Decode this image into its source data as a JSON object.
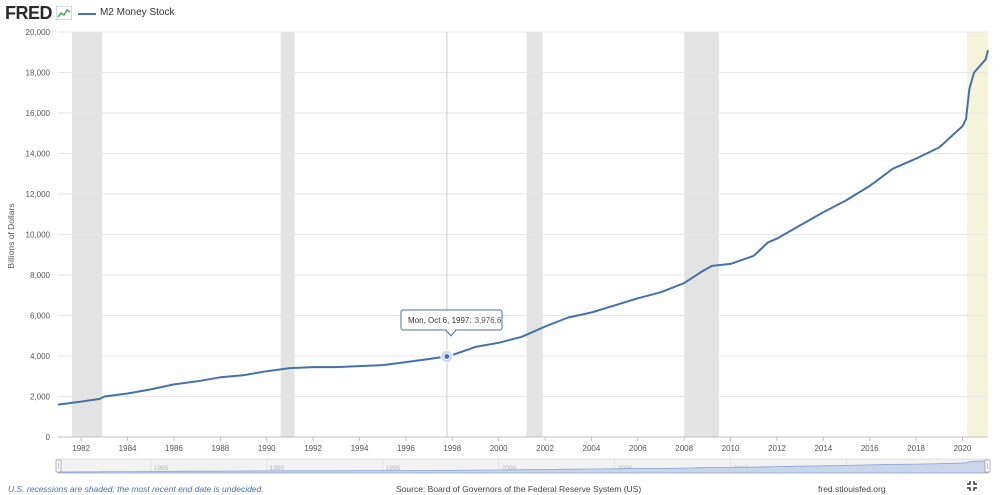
{
  "brand": {
    "logo_text": "FRED",
    "logo_icon": "fred-chart-icon"
  },
  "legend": {
    "label": "M2 Money Stock",
    "color": "#4572a7"
  },
  "colors": {
    "series": "#4572a7",
    "recession": "#e3e3e3",
    "undecided": "#f6f4d8",
    "grid": "#e6e6e6",
    "navigator_fill": "#c9d5ea"
  },
  "tooltip": {
    "date": "Mon, Oct 6, 1997:",
    "value": "3,976.6"
  },
  "footer": {
    "recession_note": "U.S. recessions are shaded; the most recent end date is undecided.",
    "source": "Source: Board of Governors of the Federal Reserve System (US)",
    "site": "fred.stlouisfed.org"
  },
  "navigator": {
    "ticks": [
      "1985",
      "1990",
      "1995",
      "2000",
      "2005",
      "2010",
      "2015",
      "2020"
    ]
  },
  "chart_data": {
    "type": "line",
    "title": "",
    "xlabel": "",
    "ylabel": "Billions of Dollars",
    "xlim": [
      1981.0,
      2021.1
    ],
    "ylim": [
      0,
      20000
    ],
    "x_ticks": [
      "1982",
      "1984",
      "1986",
      "1988",
      "1990",
      "1992",
      "1994",
      "1996",
      "1998",
      "2000",
      "2002",
      "2004",
      "2006",
      "2008",
      "2010",
      "2012",
      "2014",
      "2016",
      "2018",
      "2020"
    ],
    "y_ticks": [
      "0",
      "2,000",
      "4,000",
      "6,000",
      "8,000",
      "10,000",
      "12,000",
      "14,000",
      "16,000",
      "18,000",
      "20,000"
    ],
    "recessions": [
      [
        1981.6,
        1982.9
      ],
      [
        1990.6,
        1991.2
      ],
      [
        2001.2,
        2001.9
      ],
      [
        2008.0,
        2009.5
      ]
    ],
    "undecided_recession": [
      2020.2,
      2021.1
    ],
    "series": [
      {
        "name": "M2 Money Stock",
        "x": [
          1981.0,
          1982.0,
          1982.8,
          1983.0,
          1984.0,
          1985.0,
          1986.0,
          1987.0,
          1988.0,
          1989.0,
          1990.0,
          1991.0,
          1992.0,
          1993.0,
          1994.0,
          1995.0,
          1996.0,
          1997.0,
          1997.77,
          1998.0,
          1999.0,
          2000.0,
          2001.0,
          2002.0,
          2003.0,
          2004.0,
          2005.0,
          2006.0,
          2007.0,
          2008.0,
          2008.8,
          2009.2,
          2010.0,
          2011.0,
          2011.6,
          2012.0,
          2013.0,
          2014.0,
          2015.0,
          2016.0,
          2017.0,
          2018.0,
          2019.0,
          2020.0,
          2020.15,
          2020.3,
          2020.5,
          2021.0,
          2021.1
        ],
        "y": [
          1600,
          1750,
          1880,
          2000,
          2150,
          2350,
          2600,
          2750,
          2950,
          3050,
          3250,
          3400,
          3450,
          3450,
          3500,
          3550,
          3700,
          3850,
          3976.6,
          4050,
          4450,
          4650,
          4950,
          5450,
          5900,
          6150,
          6500,
          6850,
          7150,
          7600,
          8200,
          8450,
          8550,
          8950,
          9600,
          9800,
          10450,
          11100,
          11700,
          12400,
          13250,
          13750,
          14300,
          15350,
          15700,
          17200,
          18000,
          18650,
          19100
        ]
      }
    ]
  }
}
